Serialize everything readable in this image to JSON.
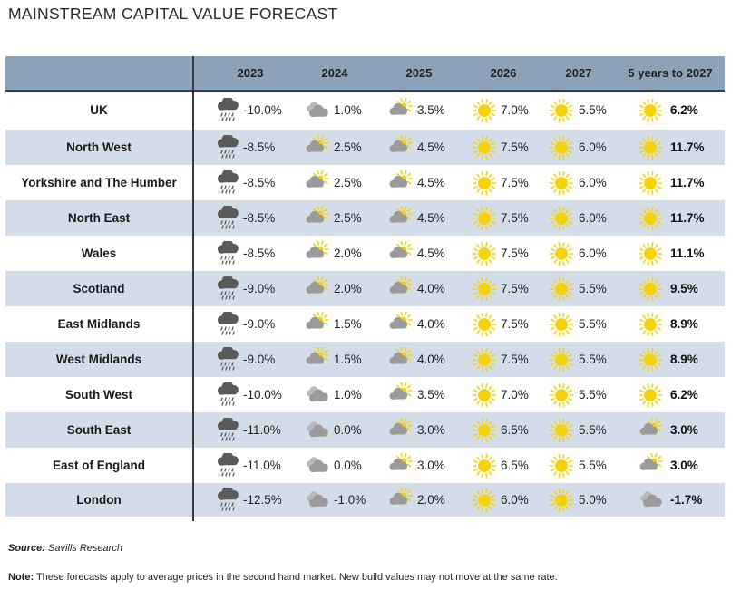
{
  "page": {
    "title": "MAINSTREAM CAPITAL VALUE FORECAST",
    "source_label": "Source:",
    "source_text": " Savills Research",
    "note_label": "Note:",
    "note_text": " These forecasts apply to average prices in the second hand market. New build values may not move at the same rate."
  },
  "colors": {
    "header_bg": "#8da2b9",
    "row_shade": "#d3dde9",
    "sun": "#f5d20a",
    "cloud": "#9b9b9b",
    "storm": "#5a5a5a"
  },
  "chart_data": {
    "type": "table",
    "title": "MAINSTREAM CAPITAL VALUE FORECAST",
    "columns": [
      "2023",
      "2024",
      "2025",
      "2026",
      "2027",
      "5 years to 2027"
    ],
    "rows": [
      {
        "region": "UK",
        "values": [
          "-10.0%",
          "1.0%",
          "3.5%",
          "7.0%",
          "5.5%",
          "6.2%"
        ],
        "icons": [
          "storm-cloud-icon",
          "cloud-icon",
          "partly-sunny-icon",
          "sun-icon",
          "sun-icon",
          "sun-icon"
        ]
      },
      {
        "region": "North West",
        "values": [
          "-8.5%",
          "2.5%",
          "4.5%",
          "7.5%",
          "6.0%",
          "11.7%"
        ],
        "icons": [
          "storm-cloud-icon",
          "partly-sunny-icon",
          "partly-sunny-icon",
          "sun-icon",
          "sun-icon",
          "sun-icon"
        ]
      },
      {
        "region": "Yorkshire and The Humber",
        "values": [
          "-8.5%",
          "2.5%",
          "4.5%",
          "7.5%",
          "6.0%",
          "11.7%"
        ],
        "icons": [
          "storm-cloud-icon",
          "partly-sunny-icon",
          "partly-sunny-icon",
          "sun-icon",
          "sun-icon",
          "sun-icon"
        ]
      },
      {
        "region": "North East",
        "values": [
          "-8.5%",
          "2.5%",
          "4.5%",
          "7.5%",
          "6.0%",
          "11.7%"
        ],
        "icons": [
          "storm-cloud-icon",
          "partly-sunny-icon",
          "partly-sunny-icon",
          "sun-icon",
          "sun-icon",
          "sun-icon"
        ]
      },
      {
        "region": "Wales",
        "values": [
          "-8.5%",
          "2.0%",
          "4.5%",
          "7.5%",
          "6.0%",
          "11.1%"
        ],
        "icons": [
          "storm-cloud-icon",
          "partly-sunny-icon",
          "partly-sunny-icon",
          "sun-icon",
          "sun-icon",
          "sun-icon"
        ]
      },
      {
        "region": "Scotland",
        "values": [
          "-9.0%",
          "2.0%",
          "4.0%",
          "7.5%",
          "5.5%",
          "9.5%"
        ],
        "icons": [
          "storm-cloud-icon",
          "partly-sunny-icon",
          "partly-sunny-icon",
          "sun-icon",
          "sun-icon",
          "sun-icon"
        ]
      },
      {
        "region": "East Midlands",
        "values": [
          "-9.0%",
          "1.5%",
          "4.0%",
          "7.5%",
          "5.5%",
          "8.9%"
        ],
        "icons": [
          "storm-cloud-icon",
          "partly-sunny-icon",
          "partly-sunny-icon",
          "sun-icon",
          "sun-icon",
          "sun-icon"
        ]
      },
      {
        "region": "West Midlands",
        "values": [
          "-9.0%",
          "1.5%",
          "4.0%",
          "7.5%",
          "5.5%",
          "8.9%"
        ],
        "icons": [
          "storm-cloud-icon",
          "partly-sunny-icon",
          "partly-sunny-icon",
          "sun-icon",
          "sun-icon",
          "sun-icon"
        ]
      },
      {
        "region": "South West",
        "values": [
          "-10.0%",
          "1.0%",
          "3.5%",
          "7.0%",
          "5.5%",
          "6.2%"
        ],
        "icons": [
          "storm-cloud-icon",
          "cloud-icon",
          "partly-sunny-icon",
          "sun-icon",
          "sun-icon",
          "sun-icon"
        ]
      },
      {
        "region": "South East",
        "values": [
          "-11.0%",
          "0.0%",
          "3.0%",
          "6.5%",
          "5.5%",
          "3.0%"
        ],
        "icons": [
          "storm-cloud-icon",
          "cloud-icon",
          "partly-sunny-icon",
          "sun-icon",
          "sun-icon",
          "partly-sunny-icon"
        ]
      },
      {
        "region": "East of England",
        "values": [
          "-11.0%",
          "0.0%",
          "3.0%",
          "6.5%",
          "5.5%",
          "3.0%"
        ],
        "icons": [
          "storm-cloud-icon",
          "cloud-icon",
          "partly-sunny-icon",
          "sun-icon",
          "sun-icon",
          "partly-sunny-icon"
        ]
      },
      {
        "region": "London",
        "values": [
          "-12.5%",
          "-1.0%",
          "2.0%",
          "6.0%",
          "5.0%",
          "-1.7%"
        ],
        "icons": [
          "storm-cloud-icon",
          "cloud-icon",
          "partly-sunny-icon",
          "sun-icon",
          "sun-icon",
          "cloud-icon"
        ]
      }
    ]
  }
}
